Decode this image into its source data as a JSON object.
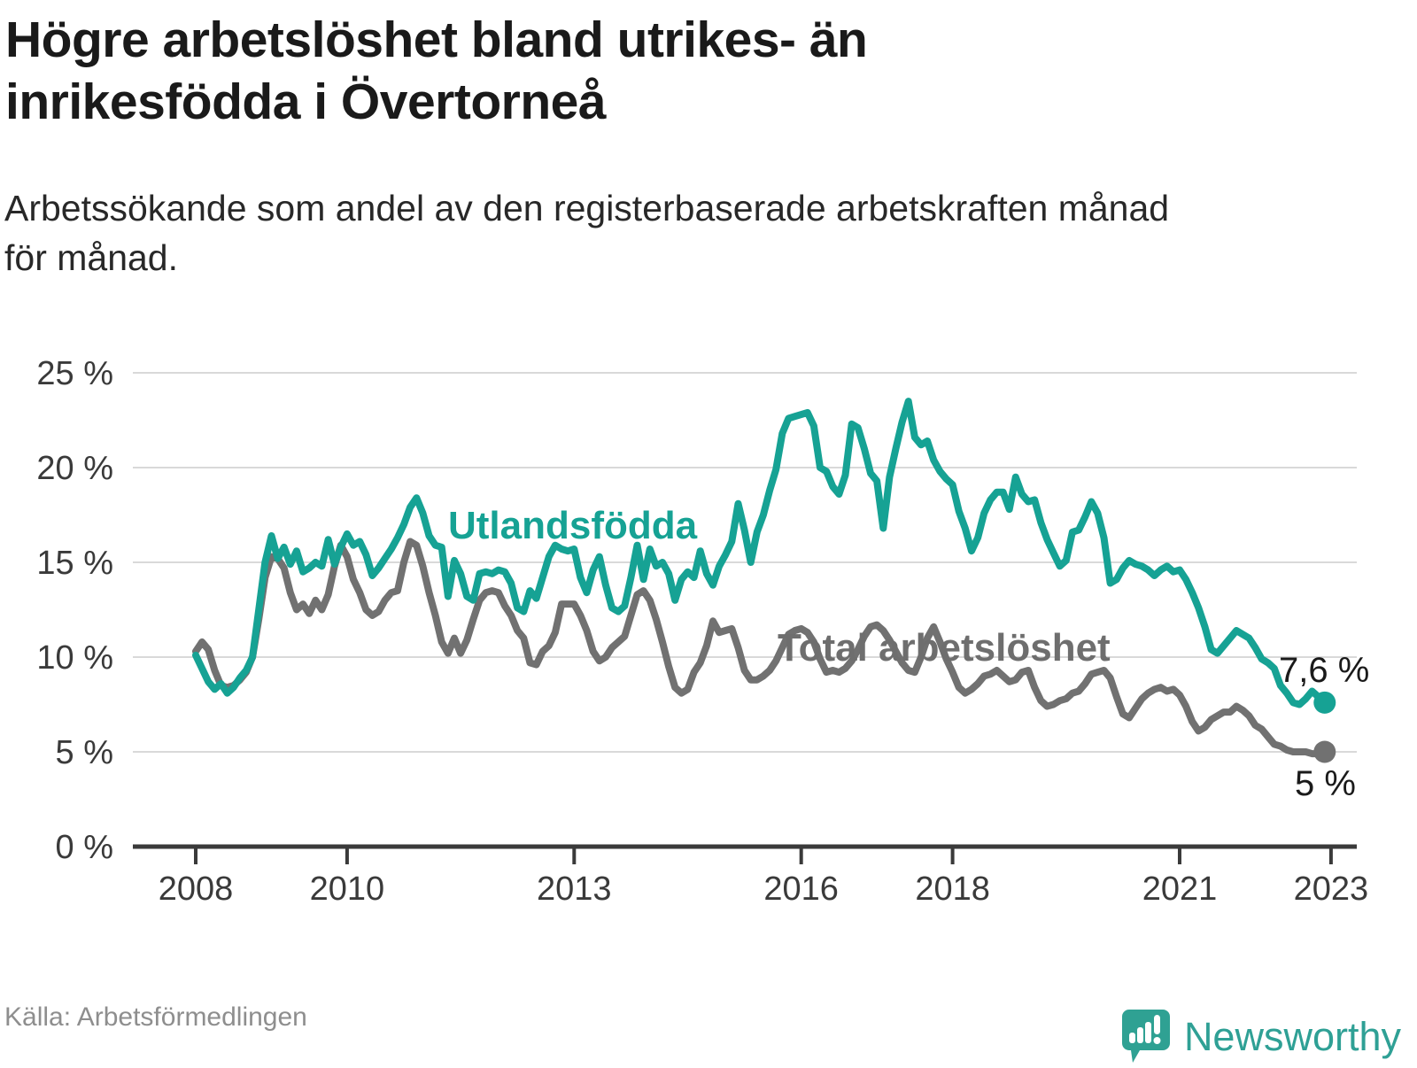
{
  "header": {
    "title_lines": [
      "Högre arbetslöshet bland utrikes- än",
      "inrikesfödda i Övertorneå"
    ],
    "subtitle_lines": [
      "Arbetssökande som andel av den registerbaserade arbetskraften månad",
      "för månad."
    ]
  },
  "chart_data": {
    "type": "line",
    "title": "Högre arbetslöshet bland utrikes- än inrikesfödda i Övertorneå",
    "subtitle": "Arbetssökande som andel av den registerbaserade arbetskraften månad för månad.",
    "x_start": "2008-01",
    "x_interval": "monthly",
    "ylim": [
      0,
      25
    ],
    "grid": "horizontal",
    "y_ticks": [
      {
        "value": 25,
        "label": "25 %"
      },
      {
        "value": 20,
        "label": "20 %"
      },
      {
        "value": 15,
        "label": "15 %"
      },
      {
        "value": 10,
        "label": "10 %"
      },
      {
        "value": 5,
        "label": "5 %"
      },
      {
        "value": 0,
        "label": "0 %"
      }
    ],
    "x_ticks": [
      {
        "year": 2008,
        "label": "2008"
      },
      {
        "year": 2010,
        "label": "2010"
      },
      {
        "year": 2013,
        "label": "2013"
      },
      {
        "year": 2016,
        "label": "2016"
      },
      {
        "year": 2018,
        "label": "2018"
      },
      {
        "year": 2021,
        "label": "2021"
      },
      {
        "year": 2023,
        "label": "2023"
      }
    ],
    "series": [
      {
        "name": "Total arbetslöshet",
        "label": "Total arbetslöshet",
        "color": "#717171",
        "end_label": "5 %",
        "end_value": 5.0,
        "values": [
          10.3,
          10.8,
          10.4,
          9.3,
          8.5,
          8.4,
          8.5,
          8.8,
          9.2,
          10.0,
          12.0,
          14.2,
          15.3,
          15.2,
          14.7,
          13.4,
          12.5,
          12.8,
          12.3,
          13.0,
          12.5,
          13.3,
          14.8,
          15.9,
          15.3,
          14.1,
          13.4,
          12.5,
          12.2,
          12.4,
          13.0,
          13.4,
          13.5,
          15.0,
          16.1,
          15.9,
          14.8,
          13.4,
          12.2,
          10.8,
          10.2,
          11.0,
          10.2,
          10.9,
          12.0,
          13.0,
          13.4,
          13.5,
          13.4,
          12.7,
          12.2,
          11.4,
          11.0,
          9.7,
          9.6,
          10.3,
          10.6,
          11.3,
          12.8,
          12.8,
          12.8,
          12.2,
          11.4,
          10.3,
          9.8,
          10.0,
          10.5,
          10.8,
          11.1,
          12.2,
          13.3,
          13.5,
          13.0,
          12.0,
          10.8,
          9.5,
          8.4,
          8.1,
          8.3,
          9.2,
          9.7,
          10.6,
          11.9,
          11.3,
          11.4,
          11.5,
          10.5,
          9.3,
          8.8,
          8.8,
          9.0,
          9.3,
          9.8,
          10.5,
          11.2,
          11.4,
          11.5,
          11.3,
          10.8,
          9.9,
          9.2,
          9.3,
          9.2,
          9.4,
          9.8,
          10.4,
          11.1,
          11.6,
          11.7,
          11.4,
          10.9,
          10.3,
          9.7,
          9.3,
          9.2,
          10.0,
          11.0,
          11.6,
          10.8,
          9.9,
          9.2,
          8.4,
          8.1,
          8.3,
          8.6,
          9.0,
          9.1,
          9.3,
          9.0,
          8.7,
          8.8,
          9.2,
          9.3,
          8.4,
          7.7,
          7.4,
          7.5,
          7.7,
          7.8,
          8.1,
          8.2,
          8.6,
          9.1,
          9.2,
          9.3,
          8.9,
          7.9,
          7.0,
          6.8,
          7.3,
          7.8,
          8.1,
          8.3,
          8.4,
          8.2,
          8.3,
          8.0,
          7.4,
          6.6,
          6.1,
          6.3,
          6.7,
          6.9,
          7.1,
          7.1,
          7.4,
          7.2,
          6.9,
          6.4,
          6.2,
          5.8,
          5.4,
          5.3,
          5.1,
          5.0,
          5.0,
          5.0,
          4.9,
          4.9,
          5.0
        ]
      },
      {
        "name": "Utlandsfödda",
        "label": "Utlandsfödda",
        "color": "#16a294",
        "end_label": "7,6 %",
        "end_value": 7.6,
        "values": [
          10.1,
          9.4,
          8.7,
          8.3,
          8.6,
          8.1,
          8.4,
          8.9,
          9.3,
          10.0,
          12.5,
          15.0,
          16.4,
          15.2,
          15.8,
          14.9,
          15.6,
          14.5,
          14.7,
          15.0,
          14.8,
          16.2,
          14.9,
          15.8,
          16.5,
          15.9,
          16.1,
          15.4,
          14.3,
          14.7,
          15.2,
          15.7,
          16.3,
          17.0,
          17.9,
          18.4,
          17.6,
          16.4,
          15.9,
          15.8,
          13.2,
          15.1,
          14.4,
          13.2,
          13.0,
          14.4,
          14.5,
          14.4,
          14.6,
          14.5,
          13.9,
          12.6,
          12.4,
          13.5,
          13.1,
          14.2,
          15.3,
          15.9,
          15.7,
          15.6,
          15.7,
          14.2,
          13.4,
          14.6,
          15.3,
          13.8,
          12.6,
          12.4,
          12.7,
          14.2,
          15.9,
          14.1,
          15.7,
          14.8,
          15.0,
          14.4,
          13.0,
          14.1,
          14.5,
          14.2,
          15.6,
          14.4,
          13.8,
          14.8,
          15.4,
          16.1,
          18.1,
          16.7,
          15.0,
          16.6,
          17.5,
          18.8,
          19.9,
          21.8,
          22.6,
          22.7,
          22.8,
          22.9,
          22.2,
          20.0,
          19.8,
          19.0,
          18.6,
          19.6,
          22.3,
          22.1,
          21.0,
          19.7,
          19.3,
          16.8,
          19.5,
          21.0,
          22.4,
          23.5,
          21.6,
          21.2,
          21.4,
          20.4,
          19.8,
          19.4,
          19.1,
          17.7,
          16.8,
          15.6,
          16.3,
          17.6,
          18.3,
          18.7,
          18.7,
          17.8,
          19.5,
          18.6,
          18.2,
          18.3,
          17.1,
          16.2,
          15.5,
          14.8,
          15.1,
          16.6,
          16.7,
          17.4,
          18.2,
          17.6,
          16.3,
          13.9,
          14.1,
          14.7,
          15.1,
          14.9,
          14.8,
          14.6,
          14.3,
          14.6,
          14.8,
          14.5,
          14.6,
          14.1,
          13.4,
          12.6,
          11.6,
          10.4,
          10.2,
          10.6,
          11.0,
          11.4,
          11.2,
          11.0,
          10.5,
          9.9,
          9.7,
          9.4,
          8.5,
          8.1,
          7.6,
          7.5,
          7.8,
          8.2,
          7.9,
          7.6
        ]
      }
    ],
    "legend_position": "inline-labels",
    "axis_color": "#3a3a3a",
    "gridline_color": "#d9d9d9"
  },
  "footer": {
    "source": "Källa: Arbetsförmedlingen",
    "brand": "Newsworthy"
  }
}
